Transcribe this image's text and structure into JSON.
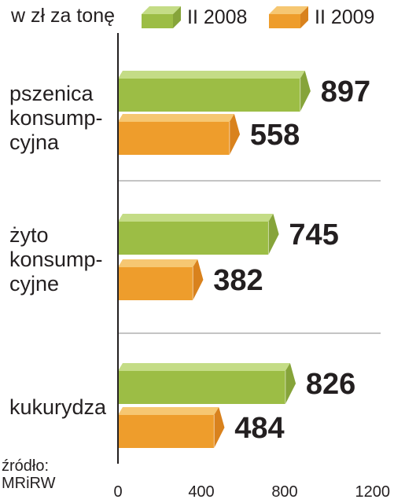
{
  "chart_data": {
    "type": "bar",
    "orientation": "horizontal",
    "unit_label": "w zł za tonę",
    "categories": [
      [
        "pszenica",
        "konsump-",
        "cyjna"
      ],
      [
        "żyto",
        "konsump-",
        "cyjne"
      ],
      [
        "kukurydza"
      ]
    ],
    "series": [
      {
        "name": "II 2008",
        "values": [
          897,
          745,
          826
        ],
        "color": "#9cbd45",
        "color_light": "#c4dc86",
        "color_dark": "#86a43a"
      },
      {
        "name": "II 2009",
        "values": [
          558,
          382,
          484
        ],
        "color": "#ee9d2c",
        "color_light": "#f6c772",
        "color_dark": "#d9821d"
      }
    ],
    "xlim": [
      0,
      1200
    ],
    "xticks": [
      "0",
      "400",
      "800",
      "1200"
    ],
    "grid": false,
    "legend_position": "top",
    "source": [
      "źródło:",
      "MRiRW"
    ]
  }
}
